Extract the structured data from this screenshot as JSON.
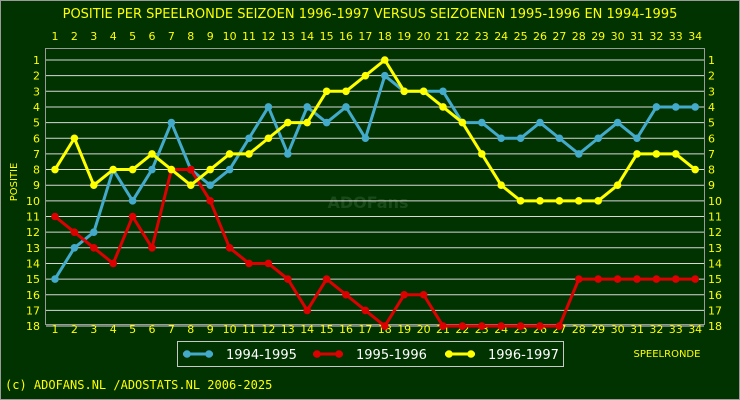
{
  "chart_data": {
    "type": "line",
    "title": "POSITIE PER SPEELRONDE SEIZOEN 1996-1997 VERSUS SEIZOENEN 1995-1996 EN 1994-1995",
    "xlabel": "SPEELRONDE",
    "ylabel": "POSITIE",
    "x": [
      1,
      2,
      3,
      4,
      5,
      6,
      7,
      8,
      9,
      10,
      11,
      12,
      13,
      14,
      15,
      16,
      17,
      18,
      19,
      20,
      21,
      22,
      23,
      24,
      25,
      26,
      27,
      28,
      29,
      30,
      31,
      32,
      33,
      34
    ],
    "y_ticks": [
      1,
      2,
      3,
      4,
      5,
      6,
      7,
      8,
      9,
      10,
      11,
      12,
      13,
      14,
      15,
      16,
      17,
      18
    ],
    "ylim": [
      1,
      18
    ],
    "y_inverted": true,
    "grid": true,
    "legend_position": "bottom",
    "series": [
      {
        "name": "1994-1995",
        "color": "#44aacc",
        "values": [
          15,
          13,
          12,
          8,
          10,
          8,
          5,
          8,
          9,
          8,
          6,
          4,
          7,
          4,
          5,
          4,
          6,
          2,
          3,
          3,
          3,
          5,
          5,
          6,
          6,
          5,
          6,
          7,
          6,
          5,
          6,
          4,
          4,
          4
        ]
      },
      {
        "name": "1995-1996",
        "color": "#dd0000",
        "values": [
          11,
          12,
          13,
          14,
          11,
          13,
          8,
          8,
          10,
          13,
          14,
          14,
          15,
          17,
          15,
          16,
          17,
          18,
          16,
          16,
          18,
          18,
          18,
          18,
          18,
          18,
          18,
          15,
          15,
          15,
          15,
          15,
          15,
          15
        ]
      },
      {
        "name": "1996-1997",
        "color": "#ffff00",
        "values": [
          8,
          6,
          9,
          8,
          8,
          7,
          8,
          9,
          8,
          7,
          7,
          6,
          5,
          5,
          3,
          3,
          2,
          1,
          3,
          3,
          4,
          5,
          7,
          9,
          10,
          10,
          10,
          10,
          10,
          9,
          7,
          7,
          7,
          8
        ]
      }
    ]
  },
  "watermark": "ADOFans",
  "footer": "(c) ADOFANS.NL /ADOSTATS.NL 2006-2025",
  "colors": {
    "background": "#003300",
    "text": "#ffff00",
    "grid": "#d8d8d8"
  }
}
